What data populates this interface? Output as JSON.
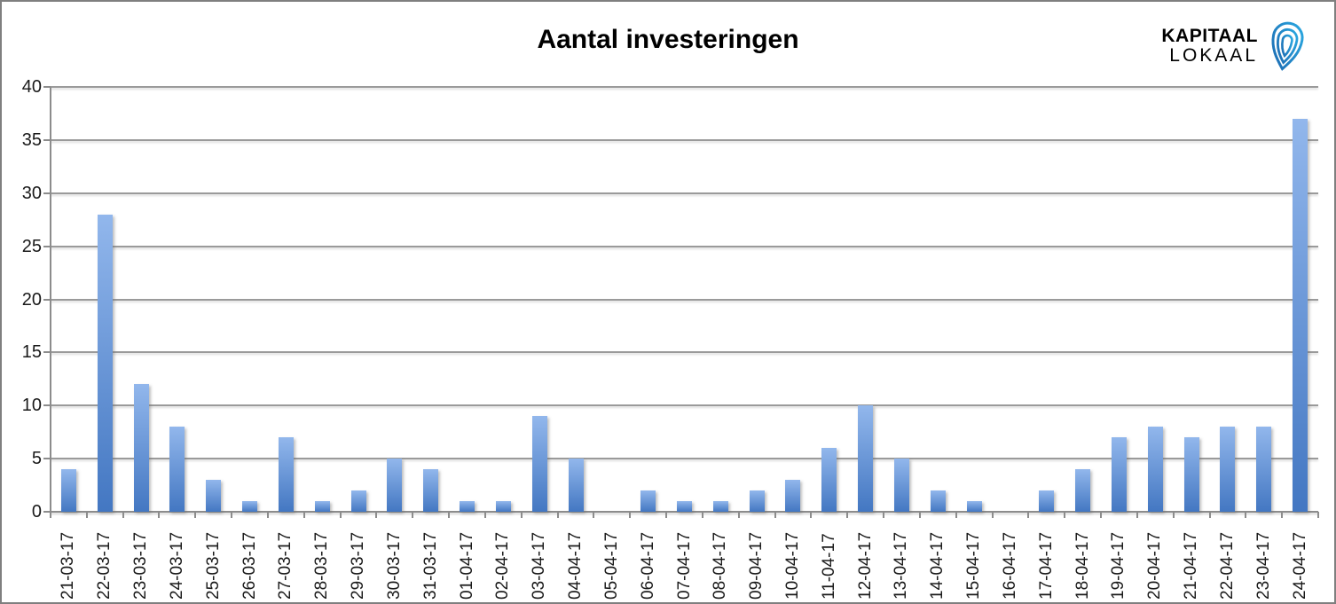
{
  "title": "Aantal investeringen",
  "logo": {
    "line1": "KAPITAAL",
    "line2": "LOKAAL",
    "icon": "pin-icon",
    "color_dark": "#1b75bc",
    "color_light": "#2d87c8"
  },
  "chart_data": {
    "type": "bar",
    "title": "Aantal investeringen",
    "categories": [
      "21-03-17",
      "22-03-17",
      "23-03-17",
      "24-03-17",
      "25-03-17",
      "26-03-17",
      "27-03-17",
      "28-03-17",
      "29-03-17",
      "30-03-17",
      "31-03-17",
      "01-04-17",
      "02-04-17",
      "03-04-17",
      "04-04-17",
      "05-04-17",
      "06-04-17",
      "07-04-17",
      "08-04-17",
      "09-04-17",
      "10-04-17",
      "11-04-17",
      "12-04-17",
      "13-04-17",
      "14-04-17",
      "15-04-17",
      "16-04-17",
      "17-04-17",
      "18-04-17",
      "19-04-17",
      "20-04-17",
      "21-04-17",
      "22-04-17",
      "23-04-17",
      "24-04-17"
    ],
    "values": [
      4,
      28,
      12,
      8,
      3,
      1,
      7,
      1,
      2,
      5,
      4,
      1,
      1,
      9,
      5,
      0,
      2,
      1,
      1,
      2,
      3,
      6,
      10,
      5,
      2,
      1,
      0,
      2,
      4,
      7,
      8,
      7,
      8,
      8,
      37
    ],
    "xlabel": "",
    "ylabel": "",
    "ylim": [
      0,
      40
    ],
    "yticks": [
      0,
      5,
      10,
      15,
      20,
      25,
      30,
      35,
      40
    ],
    "grid": true,
    "legend": "none",
    "bar_color_top": "#92b7ec",
    "bar_color_bottom": "#4377c2",
    "gridline_color": "#9a9a9a",
    "axis_color": "#8c8c8c",
    "label_color": "#1a1a1a"
  }
}
